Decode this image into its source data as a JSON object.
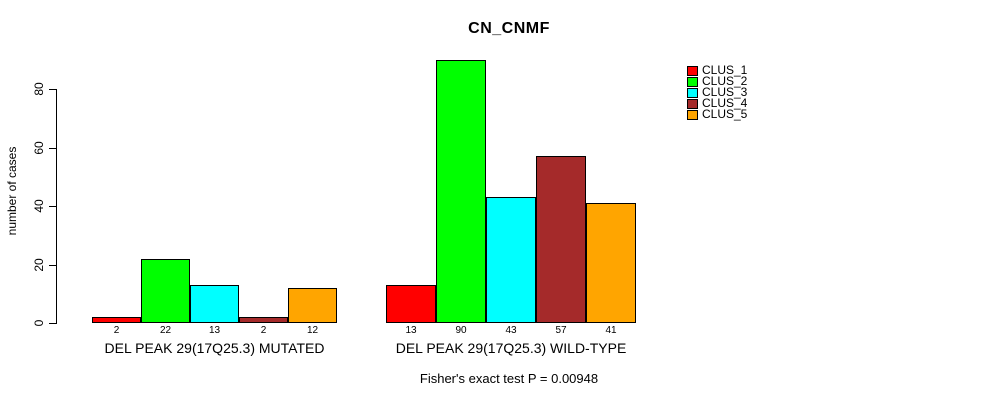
{
  "chart_data": {
    "type": "bar",
    "title": "CN_CNMF",
    "ylabel": "number of cases",
    "xlabel": "",
    "ylim": [
      0,
      90
    ],
    "yticks": [
      0,
      20,
      40,
      60,
      80
    ],
    "grid": false,
    "legend_position": "right",
    "background_color": "#ffffff",
    "axis_color": "#000000",
    "categories": [
      "DEL PEAK 29(17Q25.3) MUTATED",
      "DEL PEAK 29(17Q25.3) WILD-TYPE"
    ],
    "series": [
      {
        "name": "CLUS_1",
        "color": "#ff0000",
        "values": [
          2,
          13
        ]
      },
      {
        "name": "CLUS_2",
        "color": "#00ff00",
        "values": [
          22,
          90
        ]
      },
      {
        "name": "CLUS_3",
        "color": "#00ffff",
        "values": [
          13,
          43
        ]
      },
      {
        "name": "CLUS_4",
        "color": "#a52a2a",
        "values": [
          2,
          57
        ]
      },
      {
        "name": "CLUS_5",
        "color": "#ffa500",
        "values": [
          12,
          41
        ]
      }
    ],
    "bar_value_labels_shown": true,
    "annotation": "Fisher's exact test P = 0.00948"
  }
}
